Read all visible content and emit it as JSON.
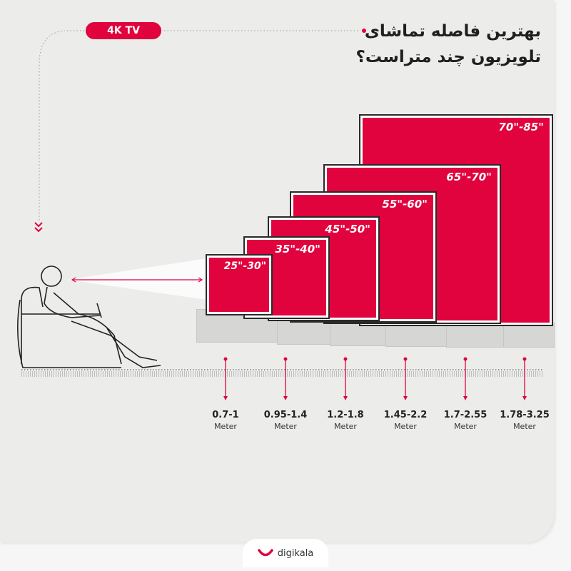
{
  "badge": "4K TV",
  "title": {
    "line1": "بهترین فاصله تماشای",
    "line2": "تلویزیون چند متراست؟"
  },
  "colors": {
    "accent": "#e0033e",
    "background": "#ececeb"
  },
  "tvs": [
    {
      "label": "25\"-30\""
    },
    {
      "label": "35\"-40\""
    },
    {
      "label": "45\"-50\""
    },
    {
      "label": "55\"-60\""
    },
    {
      "label": "65\"-70\""
    },
    {
      "label": "70\"-85\""
    }
  ],
  "distances": [
    {
      "range": "0.7-1",
      "unit": "Meter"
    },
    {
      "range": "0.95-1.4",
      "unit": "Meter"
    },
    {
      "range": "1.2-1.8",
      "unit": "Meter"
    },
    {
      "range": "1.45-2.2",
      "unit": "Meter"
    },
    {
      "range": "1.7-2.55",
      "unit": "Meter"
    },
    {
      "range": "1.78-3.25",
      "unit": "Meter"
    }
  ],
  "brand": {
    "name": "digikala",
    "icon": "digikala-smile-logo"
  }
}
